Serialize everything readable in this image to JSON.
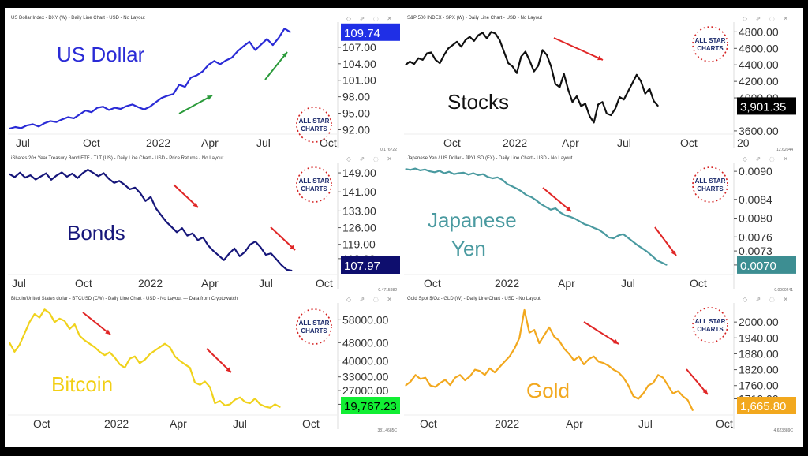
{
  "panels": [
    {
      "id": "usd",
      "header": "US Dollar Index - DXY (W) - Daily Line Chart - USD - No Layout",
      "footer": "0.176722",
      "big_label": "US Dollar",
      "big_label_color": "#2a2bd6",
      "line_color": "#2a2bd6",
      "current_value": "109.74",
      "badge_bg": "#1f2fe6",
      "badge_color": "#ffffff",
      "show_logo": true,
      "arrows": "green"
    },
    {
      "id": "spx",
      "header": "S&P 500 INDEX - SPX (W) - Daily Line Chart - USD - No Layout",
      "footer": "12.62044",
      "big_label": "Stocks",
      "big_label_color": "#111111",
      "line_color": "#111111",
      "current_value": "3,901.35",
      "badge_bg": "#000000",
      "badge_color": "#ffffff",
      "show_logo": true,
      "arrows": "red"
    },
    {
      "id": "tlt",
      "header": "iShares 20+ Year Treasury Bond ETF - TLT (US) - Daily Line Chart - USD - Price Returns - No Layout",
      "footer": "0.4715982",
      "big_label": "Bonds",
      "big_label_color": "#16167a",
      "line_color": "#16167a",
      "current_value": "107.97",
      "badge_bg": "#0e0e6e",
      "badge_color": "#ffffff",
      "show_logo": true,
      "arrows": "red"
    },
    {
      "id": "jpy",
      "header": "Japanese Yen / US Dollar - JPYUSD (FX) - Daily Line Chart - USD - No Layout",
      "footer": "0.0000241",
      "big_label_lines": [
        "Japanese",
        "Yen"
      ],
      "big_label_color": "#4a9aa0",
      "line_color": "#4a9aa0",
      "current_value": "0.0070",
      "badge_bg": "#3d8e92",
      "badge_color": "#ffffff",
      "show_logo": true,
      "arrows": "red"
    },
    {
      "id": "btc",
      "header": "Bitcoin/United States dollar - BTCUSD (CW) - Daily Line Chart - USD - No Layout --- Data from Cryptowatch",
      "footer": "381.4685C",
      "big_label": "Bitcoin",
      "big_label_color": "#f2cf15",
      "line_color": "#f0d21c",
      "current_value": "19,767.23",
      "badge_bg": "#11ee33",
      "badge_color": "#000000",
      "show_logo": true,
      "arrows": "red"
    },
    {
      "id": "gld",
      "header": "Gold Spot $/Oz - GLD (W) - Daily Line Chart - USD - No Layout",
      "footer": "4.623889C",
      "big_label": "Gold",
      "big_label_color": "#f2a81e",
      "line_color": "#f2a81e",
      "current_value": "1,665.80",
      "badge_bg": "#f2a81e",
      "badge_color": "#ffffff",
      "show_logo": true,
      "arrows": "red"
    }
  ],
  "logo": {
    "line1": "ALL STAR",
    "line2": "CHARTS",
    "color": "#1b2a6b",
    "ring_color": "#d42020"
  },
  "chart_data": [
    {
      "type": "line",
      "panel": "usd",
      "title": "US Dollar",
      "x_ticks": [
        "Jul",
        "Oct",
        "2022",
        "Apr",
        "Jul",
        "Oct"
      ],
      "y_ticks": [
        "107.00",
        "104.00",
        "101.00",
        "98.00",
        "95.00",
        "92.00"
      ],
      "ylim": [
        91.5,
        111
      ],
      "x": [
        0,
        4,
        8,
        12,
        16,
        20,
        24,
        28,
        32,
        36,
        40,
        44,
        48,
        52,
        56,
        60,
        64,
        68,
        72,
        76,
        80,
        84,
        88,
        92,
        96,
        100,
        104,
        108,
        112,
        116,
        120,
        124,
        128,
        132,
        136,
        140,
        144,
        148,
        152,
        156,
        160,
        164
      ],
      "values": [
        92.2,
        92.5,
        92.3,
        92.8,
        93.0,
        92.6,
        93.2,
        93.6,
        93.4,
        93.9,
        94.3,
        94.1,
        94.8,
        95.5,
        95.2,
        96.0,
        96.2,
        95.6,
        96.0,
        95.8,
        96.3,
        96.6,
        96.1,
        95.7,
        96.2,
        97.0,
        97.8,
        98.2,
        98.5,
        100.2,
        99.8,
        101.5,
        101.9,
        102.6,
        103.8,
        104.5,
        103.9,
        104.6,
        105.1,
        106.3,
        107.2,
        108.0
      ],
      "x_ext": [
        168,
        172,
        176,
        180,
        184,
        188,
        192
      ],
      "values_ext": [
        106.5,
        107.5,
        108.5,
        107.4,
        108.7,
        110.4,
        109.74
      ],
      "series": [
        {
          "values": "values"
        }
      ]
    },
    {
      "type": "line",
      "panel": "spx",
      "title": "Stocks",
      "x_ticks": [
        "Oct",
        "2022",
        "Apr",
        "Jul",
        "Oct",
        "20"
      ],
      "y_ticks": [
        "4800.00",
        "4600.00",
        "4400.00",
        "4200.00",
        "4000.00",
        "3600.00"
      ],
      "ylim": [
        3580,
        4880
      ],
      "values": [
        4400,
        4440,
        4410,
        4480,
        4460,
        4540,
        4550,
        4460,
        4420,
        4520,
        4600,
        4640,
        4680,
        4620,
        4700,
        4740,
        4690,
        4760,
        4790,
        4720,
        4800,
        4780,
        4700,
        4560,
        4420,
        4380,
        4300,
        4500,
        4560,
        4450,
        4320,
        4390,
        4580,
        4520,
        4380,
        4170,
        4130,
        4290,
        4100,
        3950,
        4020,
        3900,
        3930,
        3780,
        3700,
        3920,
        3950,
        3810,
        3790,
        3870,
        4010,
        3980,
        4080,
        4180,
        4280,
        4200,
        4050,
        4110,
        3960,
        3901
      ]
    },
    {
      "type": "line",
      "panel": "tlt",
      "title": "Bonds",
      "x_ticks": [
        "Jul",
        "Oct",
        "2022",
        "Apr",
        "Jul",
        "Oct"
      ],
      "y_ticks": [
        "149.00",
        "141.00",
        "133.00",
        "126.00",
        "119.00",
        "113.00"
      ],
      "ylim": [
        107,
        152
      ],
      "values": [
        148.5,
        147.2,
        149.1,
        147.0,
        148.0,
        146.2,
        147.5,
        148.8,
        146.1,
        147.9,
        149.2,
        147.4,
        148.7,
        146.8,
        148.9,
        150.3,
        149.0,
        147.6,
        148.9,
        146.5,
        144.8,
        145.6,
        144.0,
        142.1,
        142.8,
        140.5,
        137.2,
        138.9,
        134.1,
        131.2,
        128.4,
        126.3,
        124.1,
        125.8,
        122.7,
        123.6,
        120.8,
        121.9,
        118.5,
        116.2,
        114.3,
        112.4,
        115.1,
        117.3,
        114.0,
        115.8,
        118.9,
        120.2,
        117.8,
        114.6,
        115.2,
        112.8,
        110.3,
        108.4,
        107.97
      ]
    },
    {
      "type": "line",
      "panel": "jpy",
      "title": "Japanese Yen",
      "x_ticks": [
        "Oct",
        "2022",
        "Apr",
        "Jul",
        "Oct"
      ],
      "y_ticks": [
        "0.0090",
        "0.0084",
        "0.0080",
        "0.0076",
        "0.0073",
        "0.0070"
      ],
      "ylim": [
        0.00683,
        0.00912
      ],
      "values": [
        0.00905,
        0.00903,
        0.00906,
        0.00902,
        0.00904,
        0.009,
        0.00898,
        0.00901,
        0.00896,
        0.00899,
        0.00894,
        0.00896,
        0.00897,
        0.00893,
        0.00896,
        0.00892,
        0.00894,
        0.00888,
        0.00885,
        0.00887,
        0.00882,
        0.00873,
        0.00868,
        0.00863,
        0.00857,
        0.00849,
        0.00845,
        0.00838,
        0.0083,
        0.00824,
        0.00818,
        0.00821,
        0.00812,
        0.00806,
        0.00803,
        0.00799,
        0.00793,
        0.00787,
        0.00784,
        0.00779,
        0.00775,
        0.00768,
        0.00759,
        0.00757,
        0.00763,
        0.00766,
        0.00758,
        0.0075,
        0.00742,
        0.00735,
        0.00728,
        0.00719,
        0.0071,
        0.00705,
        0.007
      ]
    },
    {
      "type": "line",
      "panel": "btc",
      "title": "Bitcoin",
      "x_ticks": [
        "Oct",
        "2022",
        "Apr",
        "Jul",
        "Oct"
      ],
      "y_ticks": [
        "58000.00",
        "48000.00",
        "40000.00",
        "33000.00",
        "27000.00",
        "21000.00"
      ],
      "ylim": [
        17000,
        64000
      ],
      "values": [
        48000,
        44000,
        47000,
        52000,
        57000,
        60500,
        59000,
        62500,
        61000,
        57000,
        58500,
        57500,
        54000,
        56000,
        51000,
        49000,
        47500,
        46000,
        44000,
        42500,
        43800,
        41500,
        38500,
        37000,
        41000,
        42000,
        39000,
        40500,
        43000,
        44500,
        46000,
        47500,
        46000,
        42000,
        40000,
        38500,
        37000,
        30500,
        29500,
        31000,
        28500,
        21500,
        22500,
        20500,
        21000,
        23000,
        24000,
        22000,
        21500,
        23500,
        21000,
        20000,
        19500,
        21000,
        19767
      ]
    },
    {
      "type": "line",
      "panel": "gld",
      "title": "Gold",
      "x_ticks": [
        "Oct",
        "2022",
        "Apr",
        "Jul",
        "Oct"
      ],
      "y_ticks": [
        "2000.00",
        "1940.00",
        "1880.00",
        "1820.00",
        "1760.00",
        "1710.00"
      ],
      "ylim": [
        1655,
        2060
      ],
      "values": [
        1760,
        1775,
        1800,
        1785,
        1790,
        1760,
        1755,
        1770,
        1782,
        1762,
        1790,
        1800,
        1780,
        1795,
        1820,
        1815,
        1800,
        1825,
        1810,
        1830,
        1850,
        1870,
        1900,
        1940,
        2045,
        1960,
        1970,
        1920,
        1950,
        1980,
        1945,
        1930,
        1900,
        1880,
        1855,
        1870,
        1840,
        1860,
        1870,
        1850,
        1845,
        1835,
        1820,
        1810,
        1790,
        1760,
        1720,
        1710,
        1730,
        1760,
        1770,
        1800,
        1790,
        1760,
        1730,
        1740,
        1720,
        1705,
        1665.8
      ]
    }
  ]
}
